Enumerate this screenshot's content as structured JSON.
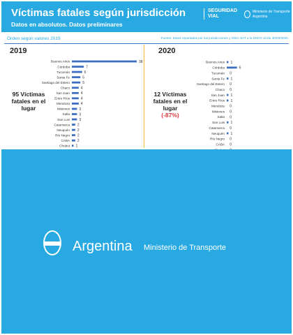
{
  "header": {
    "title": "Víctimas fatales según jurisdicción",
    "subtitle": "Datos en absolutos. Datos preliminares",
    "logo_seguridad": "SEGURIDAD",
    "logo_vial": "VIAL",
    "logo_ministerio": "Ministerio de Transporte",
    "logo_argentina": "Argentina",
    "bg_color": "#29a9e1"
  },
  "panel": {
    "order_label": "Orden según valores 2019",
    "source_label": "Fuente: Datos reportados por las jurisdicciones y SNIC-SAT a la DNOV al día 30/03/2020."
  },
  "left": {
    "year": "2019",
    "summary_line1": "95 Víctimas",
    "summary_line2": "fatales en el",
    "summary_line3": "lugar"
  },
  "right": {
    "year": "2020",
    "summary_line1": "12 Víctimas",
    "summary_line2": "fatales en el",
    "summary_line3": "lugar",
    "summary_pct": "(-87%)"
  },
  "chart_data": [
    {
      "type": "bar",
      "orientation": "horizontal",
      "title": "2019",
      "categories": [
        "Buenos Aires",
        "Córdoba",
        "Tucumán",
        "Santa Fe",
        "Santiago del Estero",
        "Chaco",
        "San Juan",
        "Entre Ríos",
        "Mendoza",
        "Misiones",
        "Salta",
        "San Luis",
        "Catamarca",
        "Neuquén",
        "Río Negro",
        "CABA",
        "Chubut"
      ],
      "values": [
        38,
        7,
        6,
        5,
        5,
        4,
        4,
        4,
        4,
        3,
        3,
        3,
        2,
        2,
        2,
        2,
        1
      ],
      "xlim": [
        0,
        38
      ],
      "bar_color": "#3c6fc2"
    },
    {
      "type": "bar",
      "orientation": "horizontal",
      "title": "2020",
      "categories": [
        "Buenos Aires",
        "Córdoba",
        "Tucumán",
        "Santa Fe",
        "Santiago del Estero",
        "Chaco",
        "San Juan",
        "Entre Ríos",
        "Mendoza",
        "Misiones",
        "Salta",
        "San Luis",
        "Catamarca",
        "Neuquén",
        "Río Negro",
        "CABA",
        "Chubut"
      ],
      "values": [
        1,
        6,
        0,
        1,
        0,
        0,
        1,
        1,
        0,
        0,
        0,
        1,
        0,
        1,
        0,
        0,
        0
      ],
      "xlim": [
        0,
        38
      ],
      "bar_color": "#3c6fc2"
    }
  ],
  "footer": {
    "argentina": "Argentina",
    "ministerio": "Ministerio de Transporte"
  }
}
